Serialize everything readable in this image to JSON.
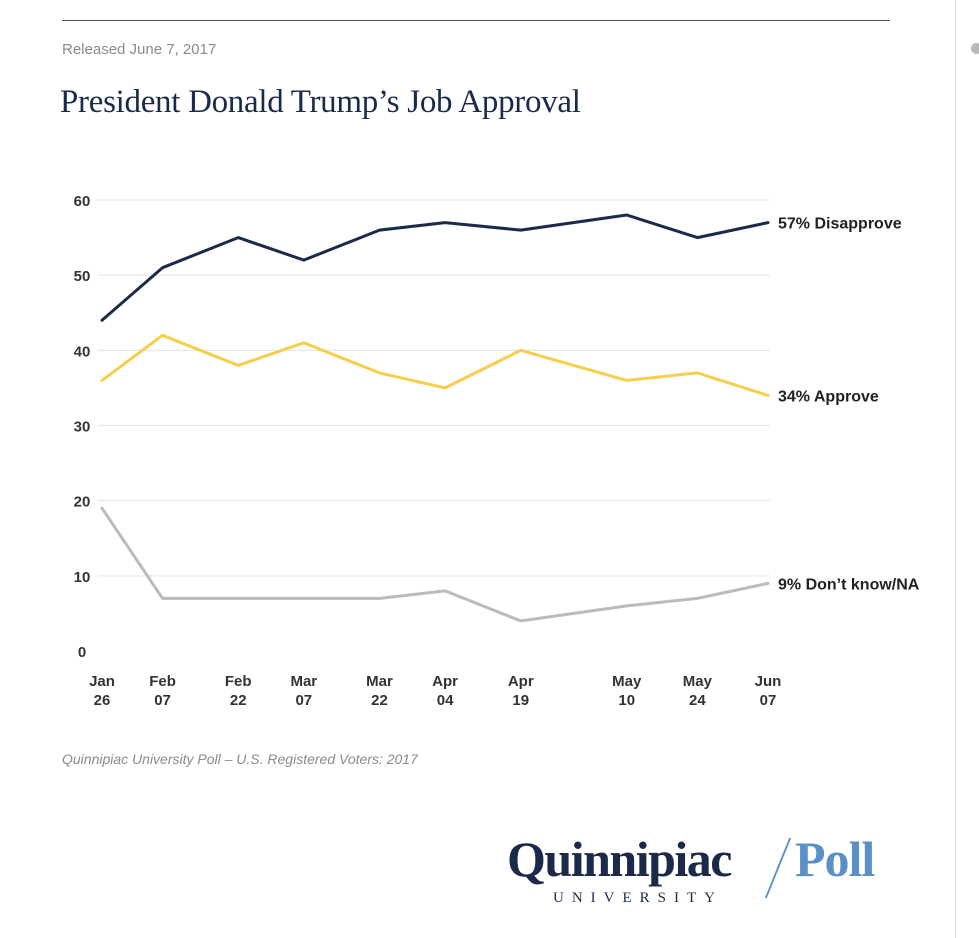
{
  "header": {
    "release_text": "Released June 7, 2017",
    "title": "President Donald Trump’s Job Approval"
  },
  "footer": {
    "source": "Quinnipiac University Poll – U.S. Registered Voters: 2017",
    "logo_name": "Quinnipiac",
    "logo_poll": "Poll",
    "logo_university": "UNIVERSITY"
  },
  "chart_data": {
    "type": "line",
    "title": "President Donald Trump’s Job Approval",
    "xlabel": "",
    "ylabel": "",
    "ylim": [
      0,
      60
    ],
    "yticks": [
      0,
      10,
      20,
      30,
      40,
      50,
      60
    ],
    "grid": true,
    "legend": "end-of-line labels",
    "categories": [
      {
        "line1": "Jan",
        "line2": "26"
      },
      {
        "line1": "Feb",
        "line2": "07"
      },
      {
        "line1": "Feb",
        "line2": "22"
      },
      {
        "line1": "Mar",
        "line2": "07"
      },
      {
        "line1": "Mar",
        "line2": "22"
      },
      {
        "line1": "Apr",
        "line2": "04"
      },
      {
        "line1": "Apr",
        "line2": "19"
      },
      {
        "line1": "May",
        "line2": "10"
      },
      {
        "line1": "May",
        "line2": "24"
      },
      {
        "line1": "Jun",
        "line2": "07"
      }
    ],
    "x": [
      "2017-01-26",
      "2017-02-07",
      "2017-02-22",
      "2017-03-07",
      "2017-03-22",
      "2017-04-04",
      "2017-04-19",
      "2017-05-10",
      "2017-05-24",
      "2017-06-07"
    ],
    "series": [
      {
        "name": "Disapprove",
        "label": "57% Disapprove",
        "color": "#1c2a4a",
        "values": [
          44,
          51,
          55,
          52,
          56,
          57,
          56,
          58,
          55,
          57
        ]
      },
      {
        "name": "Approve",
        "label": "34% Approve",
        "color": "#f5cf4b",
        "values": [
          36,
          42,
          38,
          41,
          37,
          35,
          40,
          36,
          37,
          34
        ]
      },
      {
        "name": "Don’t know/NA",
        "label": "9% Don’t know/NA",
        "color": "#bbbbbb",
        "values": [
          19,
          7,
          7,
          7,
          7,
          8,
          4,
          6,
          7,
          9
        ]
      }
    ]
  }
}
